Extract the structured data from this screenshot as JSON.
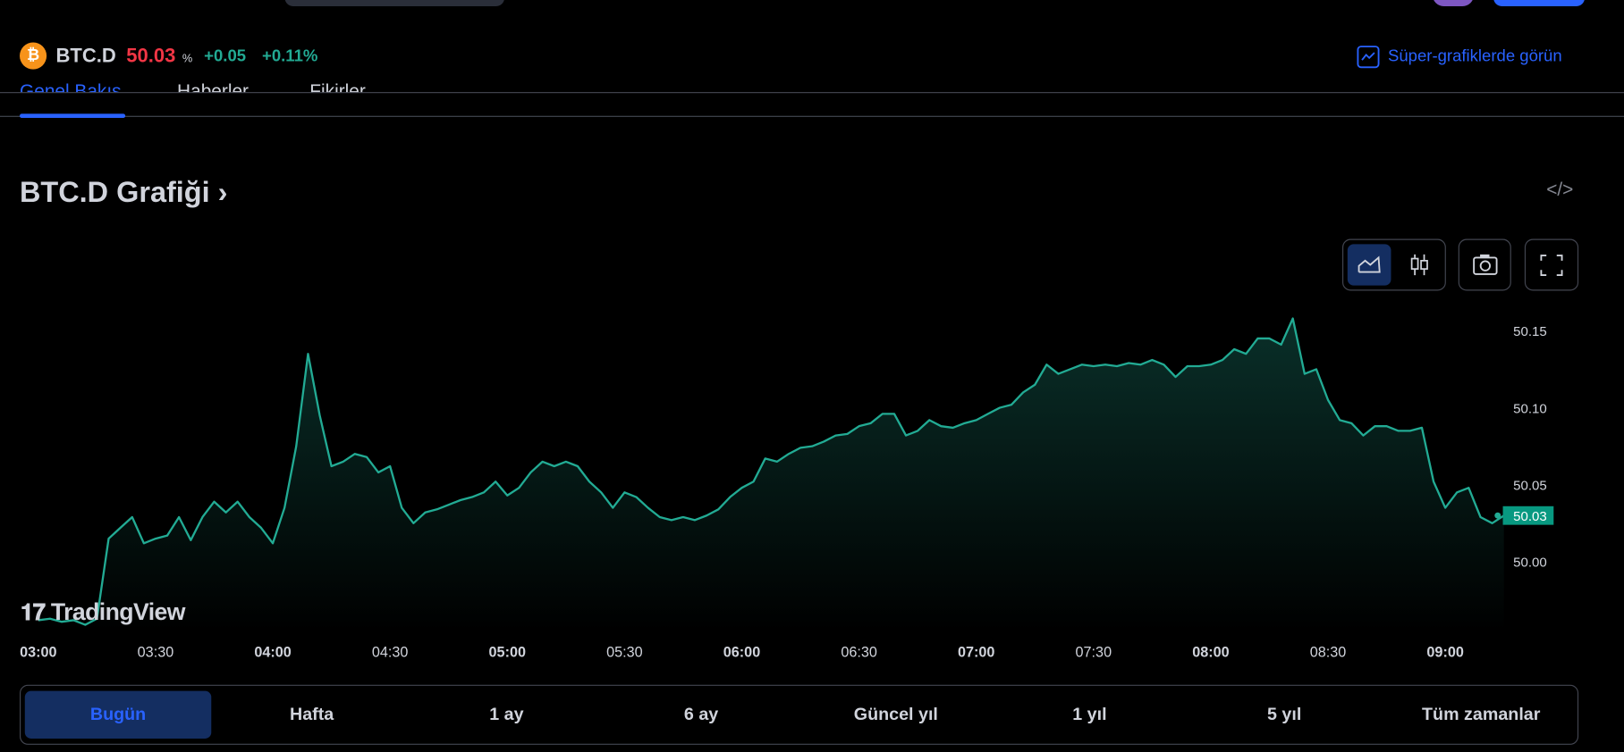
{
  "header": {
    "symbol": "BTC.D",
    "price": "50.03",
    "unit": "%",
    "change": "+0.05",
    "change_percent": "+0.11%",
    "link": "Süper-grafiklerde görün"
  },
  "tabs": [
    "Genel Bakış",
    "Haberler",
    "Fikirler"
  ],
  "section_title": "BTC.D Grafiği",
  "logo": "TradingView",
  "ranges": [
    "Bugün",
    "Hafta",
    "1 ay",
    "6 ay",
    "Güncel yıl",
    "1 yıl",
    "5 yıl",
    "Tüm zamanlar"
  ],
  "chart_data": {
    "type": "area",
    "color": "#22ab94",
    "x": [
      "03:00",
      "03:03",
      "03:06",
      "03:09",
      "03:12",
      "03:15",
      "03:18",
      "03:21",
      "03:24",
      "03:27",
      "03:30",
      "03:33",
      "03:36",
      "03:39",
      "03:42",
      "03:45",
      "03:48",
      "03:51",
      "03:54",
      "03:57",
      "04:00",
      "04:03",
      "04:06",
      "04:09",
      "04:12",
      "04:15",
      "04:18",
      "04:21",
      "04:24",
      "04:27",
      "04:30",
      "04:33",
      "04:36",
      "04:39",
      "04:42",
      "04:45",
      "04:48",
      "04:51",
      "04:54",
      "04:57",
      "05:00",
      "05:03",
      "05:06",
      "05:09",
      "05:12",
      "05:15",
      "05:18",
      "05:21",
      "05:24",
      "05:27",
      "05:30",
      "05:33",
      "05:36",
      "05:39",
      "05:42",
      "05:45",
      "05:48",
      "05:51",
      "05:54",
      "05:57",
      "06:00",
      "06:03",
      "06:06",
      "06:09",
      "06:12",
      "06:15",
      "06:18",
      "06:21",
      "06:24",
      "06:27",
      "06:30",
      "06:33",
      "06:36",
      "06:39",
      "06:42",
      "06:45",
      "06:48",
      "06:51",
      "06:54",
      "06:57",
      "07:00",
      "07:03",
      "07:06",
      "07:09",
      "07:12",
      "07:15",
      "07:18",
      "07:21",
      "07:24",
      "07:27",
      "07:30",
      "07:33",
      "07:36",
      "07:39",
      "07:42",
      "07:45",
      "07:48",
      "07:51",
      "07:54",
      "07:57",
      "08:00",
      "08:03",
      "08:06",
      "08:09",
      "08:12",
      "08:15",
      "08:18",
      "08:21",
      "08:24",
      "08:27",
      "08:30",
      "08:33",
      "08:36",
      "08:39",
      "08:42",
      "08:45",
      "08:48",
      "08:51",
      "08:54",
      "08:57",
      "09:00",
      "09:03",
      "09:06",
      "09:09",
      "09:12",
      "09:15"
    ],
    "values": [
      49.962,
      49.963,
      49.961,
      49.962,
      49.959,
      49.963,
      50.015,
      50.022,
      50.029,
      50.012,
      50.015,
      50.017,
      50.029,
      50.014,
      50.029,
      50.039,
      50.032,
      50.039,
      50.029,
      50.022,
      50.012,
      50.035,
      50.075,
      50.135,
      50.095,
      50.062,
      50.065,
      50.07,
      50.068,
      50.058,
      50.062,
      50.035,
      50.025,
      50.032,
      50.034,
      50.037,
      50.04,
      50.042,
      50.045,
      50.052,
      50.043,
      50.048,
      50.058,
      50.065,
      50.062,
      50.065,
      50.062,
      50.052,
      50.045,
      50.035,
      50.045,
      50.042,
      50.035,
      50.029,
      50.027,
      50.029,
      50.027,
      50.03,
      50.034,
      50.042,
      50.048,
      50.052,
      50.067,
      50.065,
      50.07,
      50.074,
      50.075,
      50.078,
      50.082,
      50.083,
      50.088,
      50.09,
      50.096,
      50.096,
      50.082,
      50.085,
      50.092,
      50.088,
      50.087,
      50.09,
      50.092,
      50.096,
      50.1,
      50.102,
      50.11,
      50.115,
      50.128,
      50.122,
      50.125,
      50.128,
      50.127,
      50.128,
      50.127,
      50.129,
      50.128,
      50.131,
      50.128,
      50.12,
      50.127,
      50.127,
      50.128,
      50.131,
      50.138,
      50.135,
      50.145,
      50.145,
      50.141,
      50.158,
      50.122,
      50.125,
      50.105,
      50.092,
      50.09,
      50.082,
      50.088,
      50.088,
      50.085,
      50.085,
      50.087,
      50.052,
      50.035,
      50.045,
      50.048,
      50.029,
      50.025,
      50.03
    ],
    "xlim": [
      "03:00",
      "09:15"
    ],
    "xticks": [
      "03:00",
      "03:30",
      "04:00",
      "04:30",
      "05:00",
      "05:30",
      "06:00",
      "06:30",
      "07:00",
      "07:30",
      "08:00",
      "08:30",
      "09:00"
    ],
    "ylim": [
      49.955,
      50.17
    ],
    "yticks": [
      {
        "value": 50,
        "label": "50.00"
      },
      50.05,
      {
        "value": 50.1,
        "label": "50.10"
      },
      50.15
    ]
  }
}
